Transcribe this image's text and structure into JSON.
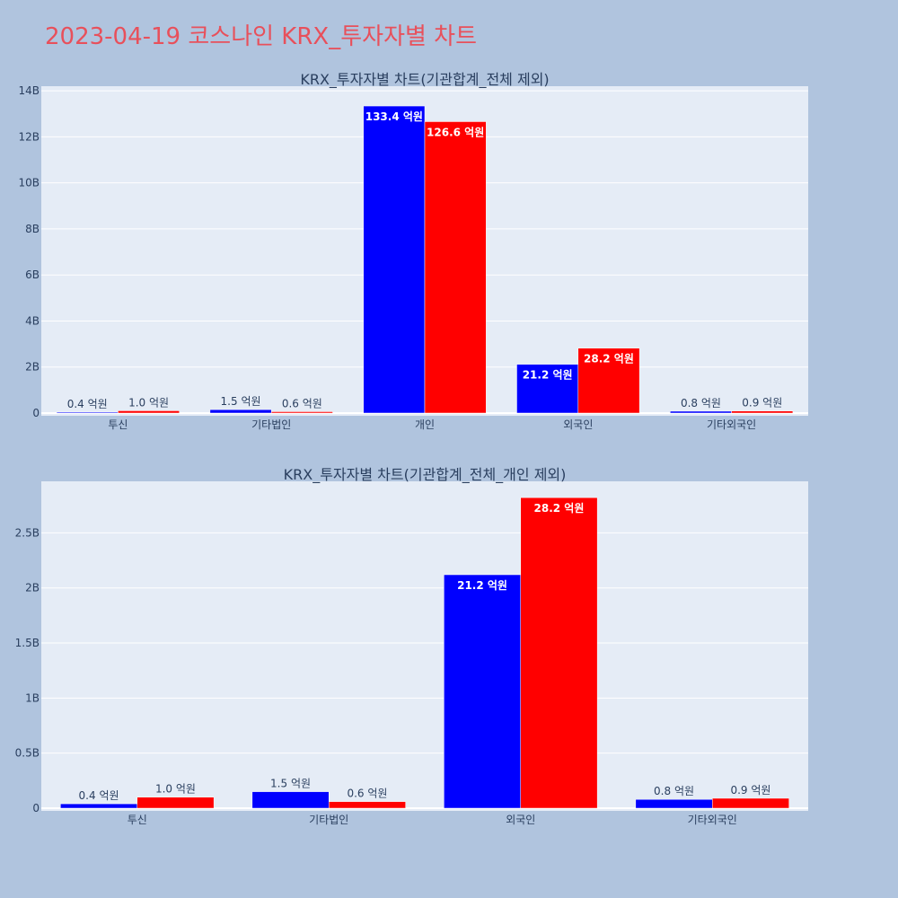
{
  "page": {
    "title": "2023-04-19 코스나인 KRX_투자자별 차트",
    "background": "#b0c4de",
    "title_color": "#e8505b"
  },
  "colors": {
    "plot_bg": "#e5ecf6",
    "grid": "#ffffff",
    "series_a": "#0000ff",
    "series_b": "#ff0000",
    "text": "#2a3f5f"
  },
  "chart_data": [
    {
      "type": "bar",
      "title": "KRX_투자자별 차트(기관합계_전체 제외)",
      "categories": [
        "투신",
        "기타법인",
        "개인",
        "외국인",
        "기타외국인"
      ],
      "series": [
        {
          "values": [
            40000000,
            150000000,
            13340000000,
            2120000000,
            80000000
          ],
          "labels": [
            "0.4 억원",
            "1.5 억원",
            "133.4 억원",
            "21.2 억원",
            "0.8 억원"
          ]
        },
        {
          "values": [
            100000000,
            60000000,
            12660000000,
            2820000000,
            90000000
          ],
          "labels": [
            "1.0 억원",
            "0.6 억원",
            "126.6 억원",
            "28.2 억원",
            "0.9 억원"
          ]
        }
      ],
      "yticks": [
        0,
        2000000000,
        4000000000,
        6000000000,
        8000000000,
        10000000000,
        12000000000,
        14000000000
      ],
      "ytick_labels": [
        "0",
        "2B",
        "4B",
        "6B",
        "8B",
        "10B",
        "12B",
        "14B"
      ],
      "ylim": [
        0,
        14200000000
      ],
      "grid": true
    },
    {
      "type": "bar",
      "title": "KRX_투자자별 차트(기관합계_전체_개인 제외)",
      "categories": [
        "투신",
        "기타법인",
        "외국인",
        "기타외국인"
      ],
      "series": [
        {
          "values": [
            40000000,
            150000000,
            2120000000,
            80000000
          ],
          "labels": [
            "0.4 억원",
            "1.5 억원",
            "21.2 억원",
            "0.8 억원"
          ]
        },
        {
          "values": [
            100000000,
            60000000,
            2820000000,
            90000000
          ],
          "labels": [
            "1.0 억원",
            "0.6 억원",
            "28.2 억원",
            "0.9 억원"
          ]
        }
      ],
      "yticks": [
        0,
        500000000,
        1000000000,
        1500000000,
        2000000000,
        2500000000
      ],
      "ytick_labels": [
        "0",
        "0.5B",
        "1B",
        "1.5B",
        "2B",
        "2.5B"
      ],
      "ylim": [
        0,
        2968000000
      ],
      "grid": true
    }
  ]
}
